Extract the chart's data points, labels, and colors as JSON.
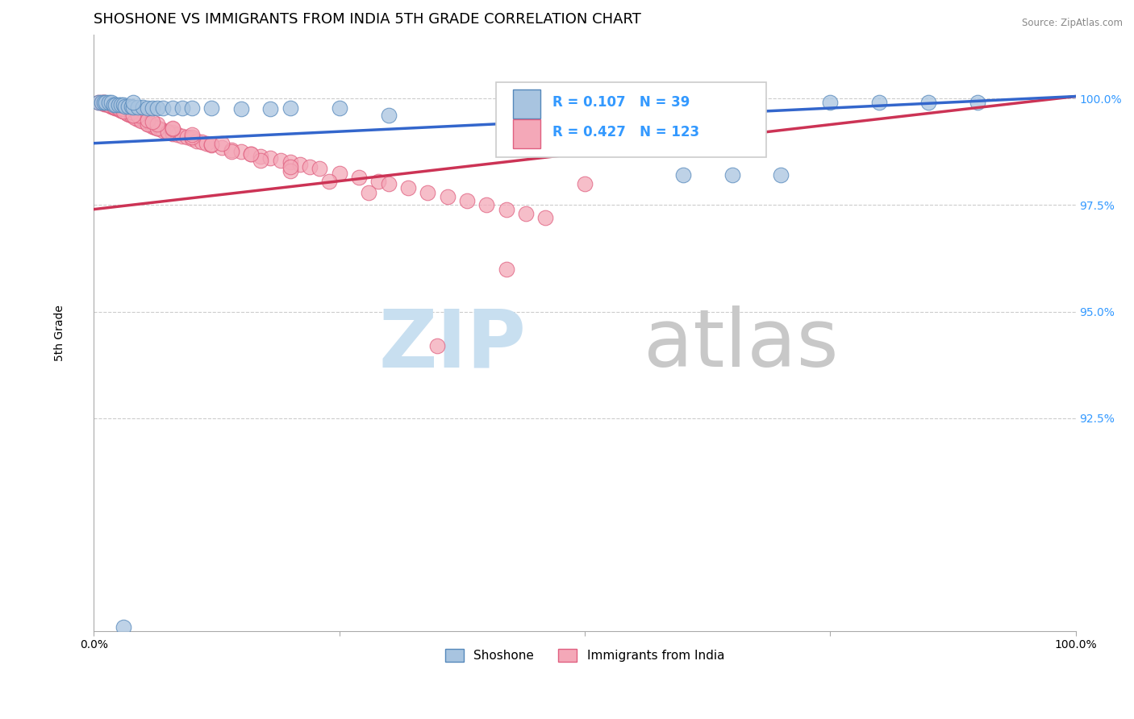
{
  "title": "SHOSHONE VS IMMIGRANTS FROM INDIA 5TH GRADE CORRELATION CHART",
  "source": "Source: ZipAtlas.com",
  "ylabel": "5th Grade",
  "xlim": [
    0.0,
    1.0
  ],
  "ylim": [
    0.875,
    1.015
  ],
  "xticks": [
    0.0,
    0.25,
    0.5,
    0.75,
    1.0
  ],
  "xticklabels": [
    "0.0%",
    "",
    "",
    "",
    "100.0%"
  ],
  "yticks": [
    0.925,
    0.95,
    0.975,
    1.0
  ],
  "yticklabels": [
    "92.5%",
    "95.0%",
    "97.5%",
    "100.0%"
  ],
  "R_shoshone": 0.107,
  "N_shoshone": 39,
  "R_india": 0.427,
  "N_india": 123,
  "shoshone_color": "#a8c4e0",
  "shoshone_edge": "#5588bb",
  "india_color": "#f4a8b8",
  "india_edge": "#e06080",
  "trend_shoshone": "#3366cc",
  "trend_india": "#cc3355",
  "r_text_color": "#3399ff",
  "background_color": "#ffffff",
  "grid_color": "#cccccc",
  "title_fontsize": 13,
  "label_fontsize": 10,
  "tick_fontsize": 10,
  "watermark_zip_color": "#c8dff0",
  "watermark_atlas_color": "#c8c8c8",
  "shoshone_pts_x": [
    0.005,
    0.008,
    0.01,
    0.012,
    0.015,
    0.018,
    0.02,
    0.022,
    0.025,
    0.028,
    0.03,
    0.032,
    0.035,
    0.038,
    0.04,
    0.045,
    0.05,
    0.055,
    0.06,
    0.065,
    0.07,
    0.08,
    0.09,
    0.1,
    0.12,
    0.15,
    0.18,
    0.2,
    0.25,
    0.3,
    0.6,
    0.65,
    0.7,
    0.75,
    0.8,
    0.85,
    0.9,
    0.03,
    0.04
  ],
  "shoshone_pts_y": [
    0.999,
    0.999,
    0.999,
    0.999,
    0.999,
    0.999,
    0.9985,
    0.9985,
    0.9985,
    0.9985,
    0.9985,
    0.9982,
    0.9982,
    0.9982,
    0.998,
    0.998,
    0.998,
    0.9978,
    0.9978,
    0.9978,
    0.9978,
    0.9978,
    0.9978,
    0.9978,
    0.9978,
    0.9975,
    0.9975,
    0.9978,
    0.9978,
    0.996,
    0.982,
    0.982,
    0.982,
    0.999,
    0.999,
    0.999,
    0.999,
    0.876,
    0.999
  ],
  "india_pts_x": [
    0.005,
    0.008,
    0.01,
    0.01,
    0.012,
    0.014,
    0.015,
    0.015,
    0.016,
    0.018,
    0.018,
    0.02,
    0.02,
    0.022,
    0.022,
    0.025,
    0.025,
    0.026,
    0.028,
    0.028,
    0.03,
    0.03,
    0.032,
    0.032,
    0.034,
    0.034,
    0.036,
    0.036,
    0.038,
    0.04,
    0.04,
    0.042,
    0.045,
    0.045,
    0.048,
    0.05,
    0.05,
    0.052,
    0.055,
    0.055,
    0.06,
    0.06,
    0.062,
    0.065,
    0.068,
    0.07,
    0.075,
    0.08,
    0.08,
    0.085,
    0.09,
    0.095,
    0.1,
    0.105,
    0.11,
    0.115,
    0.12,
    0.13,
    0.14,
    0.15,
    0.16,
    0.17,
    0.18,
    0.19,
    0.2,
    0.21,
    0.22,
    0.23,
    0.25,
    0.27,
    0.29,
    0.3,
    0.32,
    0.34,
    0.36,
    0.38,
    0.4,
    0.42,
    0.44,
    0.46,
    0.01,
    0.012,
    0.015,
    0.018,
    0.02,
    0.022,
    0.025,
    0.028,
    0.03,
    0.034,
    0.038,
    0.042,
    0.048,
    0.055,
    0.065,
    0.075,
    0.015,
    0.02,
    0.025,
    0.03,
    0.038,
    0.045,
    0.055,
    0.065,
    0.08,
    0.1,
    0.12,
    0.14,
    0.17,
    0.2,
    0.24,
    0.03,
    0.04,
    0.06,
    0.08,
    0.1,
    0.13,
    0.16,
    0.2,
    0.28,
    0.35,
    0.42,
    0.5
  ],
  "india_pts_y": [
    0.999,
    0.999,
    0.999,
    0.9988,
    0.9988,
    0.9988,
    0.9985,
    0.9985,
    0.9985,
    0.9985,
    0.9982,
    0.9982,
    0.998,
    0.998,
    0.9978,
    0.9978,
    0.9975,
    0.9975,
    0.9975,
    0.9972,
    0.9972,
    0.997,
    0.997,
    0.9968,
    0.9968,
    0.9965,
    0.9965,
    0.9962,
    0.9962,
    0.996,
    0.9958,
    0.9958,
    0.9955,
    0.9952,
    0.995,
    0.995,
    0.9948,
    0.9945,
    0.9942,
    0.994,
    0.9938,
    0.9935,
    0.9932,
    0.993,
    0.9928,
    0.9925,
    0.9922,
    0.992,
    0.9918,
    0.9915,
    0.9912,
    0.991,
    0.9905,
    0.99,
    0.9898,
    0.9895,
    0.989,
    0.9885,
    0.988,
    0.9875,
    0.987,
    0.9865,
    0.986,
    0.9855,
    0.985,
    0.9845,
    0.984,
    0.9835,
    0.9825,
    0.9815,
    0.9805,
    0.98,
    0.979,
    0.978,
    0.977,
    0.976,
    0.975,
    0.974,
    0.973,
    0.972,
    0.999,
    0.9988,
    0.9985,
    0.9982,
    0.998,
    0.9978,
    0.9975,
    0.9972,
    0.997,
    0.9965,
    0.996,
    0.9955,
    0.9948,
    0.994,
    0.993,
    0.992,
    0.9985,
    0.9982,
    0.9978,
    0.9975,
    0.9968,
    0.996,
    0.995,
    0.994,
    0.9928,
    0.991,
    0.9892,
    0.9875,
    0.9855,
    0.983,
    0.9805,
    0.997,
    0.996,
    0.9945,
    0.993,
    0.9915,
    0.9895,
    0.987,
    0.984,
    0.978,
    0.942,
    0.96,
    0.98
  ]
}
